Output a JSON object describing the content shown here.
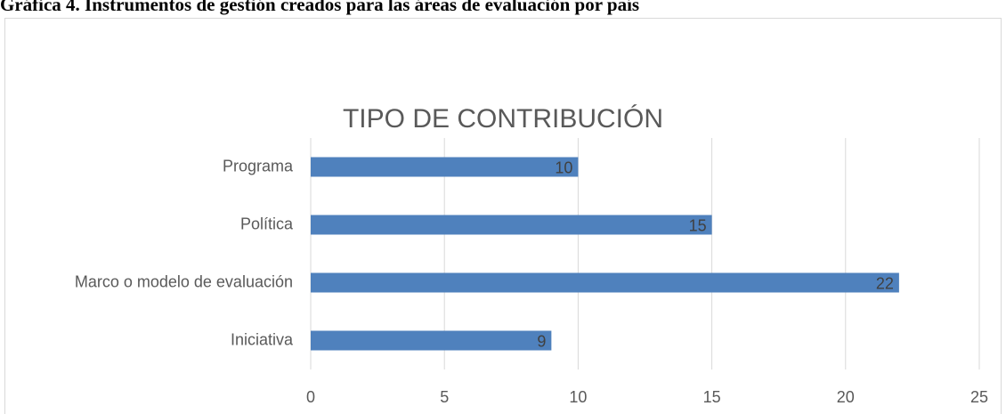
{
  "caption": "Gráfica 4. Instrumentos de gestión creados para las áreas de evaluación por país",
  "chart_data": {
    "type": "hbar",
    "title": "TIPO DE CONTRIBUCIÓN",
    "categories": [
      "Programa",
      "Política",
      "Marco o modelo de evaluación",
      "Iniciativa"
    ],
    "values": [
      10,
      15,
      22,
      9
    ],
    "color": "#4f81bd",
    "xlim": [
      0,
      25
    ],
    "xticks": [
      0,
      5,
      10,
      15,
      20,
      25
    ],
    "grid": true
  }
}
